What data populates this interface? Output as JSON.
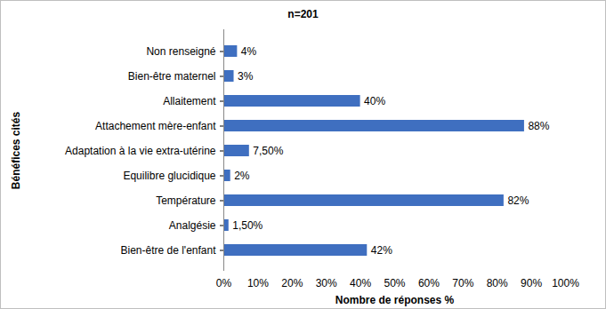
{
  "chart_data": {
    "type": "bar",
    "orientation": "horizontal",
    "title": "n=201",
    "x_label": "Nombre de réponses %",
    "y_label": "Bénéfices cités",
    "categories": [
      "Non renseigné",
      "Bien-être maternel",
      "Allaitement",
      "Attachement mère-enfant",
      "Adaptation à la vie extra-utérine",
      "Equilibre glucidique",
      "Température",
      "Analgésie",
      "Bien-être de l'enfant"
    ],
    "values": [
      4,
      3,
      40,
      88,
      7.5,
      2,
      82,
      1.5,
      42
    ],
    "value_labels": [
      "4%",
      "3%",
      "40%",
      "88%",
      "7,50%",
      "2%",
      "82%",
      "1,50%",
      "42%"
    ],
    "color": "#3f6fc0",
    "xlim": [
      0,
      100
    ],
    "xticks": [
      {
        "value": 0,
        "label": "0%"
      },
      {
        "value": 10,
        "label": "10%"
      },
      {
        "value": 20,
        "label": "20%"
      },
      {
        "value": 30,
        "label": "30%"
      },
      {
        "value": 40,
        "label": "40%"
      },
      {
        "value": 50,
        "label": "50%"
      },
      {
        "value": 60,
        "label": "60%"
      },
      {
        "value": 70,
        "label": "70%"
      },
      {
        "value": 80,
        "label": "80%"
      },
      {
        "value": 90,
        "label": "90%"
      },
      {
        "value": 100,
        "label": "100%"
      }
    ],
    "grid": false,
    "data_labels": true
  }
}
